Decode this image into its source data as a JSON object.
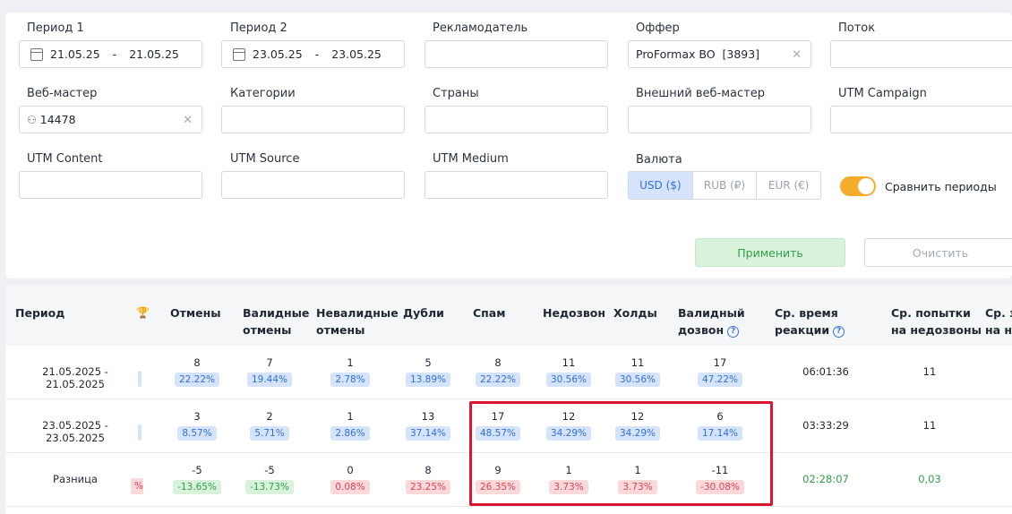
{
  "filters": {
    "period1": {
      "label": "Период 1",
      "from": "21.05.25",
      "to": "21.05.25"
    },
    "period2": {
      "label": "Период 2",
      "from": "23.05.25",
      "to": "23.05.25"
    },
    "advertiser": {
      "label": "Рекламодатель",
      "value": ""
    },
    "offer": {
      "label": "Оффер",
      "value": "ProFormax BO  [3893]"
    },
    "stream": {
      "label": "Поток",
      "value": ""
    },
    "webmaster": {
      "label": "Веб-мастер",
      "value": "14478"
    },
    "categories": {
      "label": "Категории",
      "value": ""
    },
    "countries": {
      "label": "Страны",
      "value": ""
    },
    "external_webmaster": {
      "label": "Внешний веб-мастер",
      "value": ""
    },
    "utm_campaign": {
      "label": "UTM Campaign",
      "value": ""
    },
    "utm_content": {
      "label": "UTM Content",
      "value": ""
    },
    "utm_source": {
      "label": "UTM Source",
      "value": ""
    },
    "utm_medium": {
      "label": "UTM Medium",
      "value": ""
    },
    "currency": {
      "label": "Валюта",
      "options": [
        "USD ($)",
        "RUB (₽)",
        "EUR (€)"
      ],
      "selected": "USD ($)"
    },
    "compare": {
      "label": "Сравнить периоды",
      "on": true
    },
    "apply_label": "Применить",
    "clear_label": "Очистить"
  },
  "table": {
    "headers": {
      "period": "Период",
      "cancels": "Отмены",
      "valid_cancels_1": "Валидные",
      "valid_cancels_2": "отмены",
      "invalid_cancels_1": "Невалидные",
      "invalid_cancels_2": "отмены",
      "duplicates": "Дубли",
      "spam": "Спам",
      "no_answer": "Недозвон",
      "holds": "Холды",
      "valid_call_1": "Валидный",
      "valid_call_2": "дозвон",
      "avg_reaction_1": "Ср. время",
      "avg_reaction_2": "реакции",
      "avg_attempts_1": "Ср. попытки",
      "avg_attempts_2": "на недозвоны",
      "cut_1": "Ср. з",
      "cut_2": "на не"
    },
    "rows": [
      {
        "period": "21.05.2025 - 21.05.2025",
        "cells": [
          {
            "v": "8",
            "p": "22.22%"
          },
          {
            "v": "7",
            "p": "19.44%"
          },
          {
            "v": "1",
            "p": "2.78%"
          },
          {
            "v": "5",
            "p": "13.89%"
          },
          {
            "v": "8",
            "p": "22.22%"
          },
          {
            "v": "11",
            "p": "30.56%"
          },
          {
            "v": "11",
            "p": "30.56%"
          },
          {
            "v": "17",
            "p": "47.22%"
          }
        ],
        "reaction": "06:01:36",
        "attempts": "11"
      },
      {
        "period": "23.05.2025 - 23.05.2025",
        "cells": [
          {
            "v": "3",
            "p": "8.57%"
          },
          {
            "v": "2",
            "p": "5.71%"
          },
          {
            "v": "1",
            "p": "2.86%"
          },
          {
            "v": "13",
            "p": "37.14%"
          },
          {
            "v": "17",
            "p": "48.57%"
          },
          {
            "v": "12",
            "p": "34.29%"
          },
          {
            "v": "12",
            "p": "34.29%"
          },
          {
            "v": "6",
            "p": "17.14%"
          }
        ],
        "reaction": "03:33:29",
        "attempts": "11"
      },
      {
        "period": "Разница",
        "stub": "%",
        "cells": [
          {
            "v": "-5",
            "p": "-13.65%"
          },
          {
            "v": "-5",
            "p": "-13.73%"
          },
          {
            "v": "0",
            "p": "0.08%"
          },
          {
            "v": "8",
            "p": "23.25%"
          },
          {
            "v": "9",
            "p": "26.35%"
          },
          {
            "v": "1",
            "p": "3.73%"
          },
          {
            "v": "1",
            "p": "3.73%"
          },
          {
            "v": "-11",
            "p": "-30.08%"
          }
        ],
        "reaction": "02:28:07",
        "attempts": "0,03"
      }
    ]
  },
  "colors": {
    "accent": "#2f6fdc",
    "positive": "#2f9e47",
    "negative": "#e0414f",
    "toggle": "#f5ad2b",
    "highlight": "#d8162e"
  }
}
